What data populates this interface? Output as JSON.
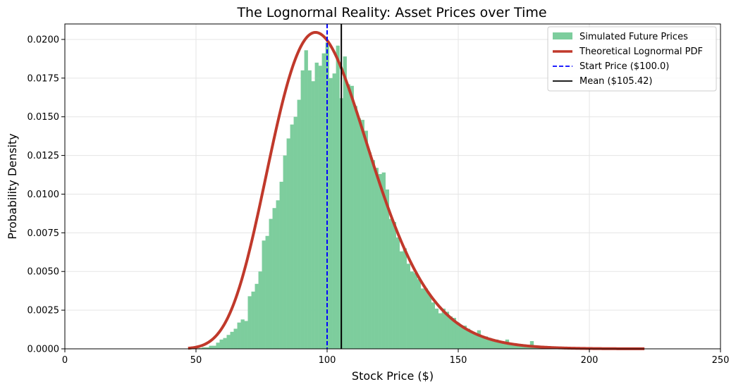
{
  "chart_data": {
    "type": "histogram",
    "title": "The Lognormal Reality: Asset Prices over Time",
    "xlabel": "Stock Price ($)",
    "ylabel": "Probability Density",
    "xlim": [
      0,
      250
    ],
    "ylim": [
      0,
      0.021
    ],
    "x_ticks": [
      0,
      50,
      100,
      150,
      200,
      250
    ],
    "y_ticks": [
      0.0,
      0.0025,
      0.005,
      0.0075,
      0.01,
      0.0125,
      0.015,
      0.0175,
      0.02
    ],
    "y_tick_labels": [
      "0.0000",
      "0.0025",
      "0.0050",
      "0.0075",
      "0.0100",
      "0.0125",
      "0.0150",
      "0.0175",
      "0.0200"
    ],
    "grid": true,
    "legend_position": "top-right",
    "colors": {
      "histogram": "#7dcd9d",
      "pdf_curve": "#c0392b",
      "start_line": "#0000ff",
      "mean_line": "#000000"
    },
    "histogram": {
      "name": "Simulated Future Prices",
      "bin_start": 46.9,
      "bin_width": 1.345,
      "values": [
        5e-05,
        0.0,
        0.0,
        5e-05,
        0.0001,
        0.0001,
        0.0002,
        0.0002,
        0.0004,
        0.0006,
        0.0007,
        0.0009,
        0.0011,
        0.0013,
        0.0017,
        0.0019,
        0.0018,
        0.0034,
        0.0037,
        0.0042,
        0.005,
        0.007,
        0.0073,
        0.0084,
        0.0091,
        0.0096,
        0.0108,
        0.0125,
        0.0136,
        0.0145,
        0.015,
        0.0161,
        0.018,
        0.0193,
        0.018,
        0.0173,
        0.0185,
        0.0183,
        0.0191,
        0.0198,
        0.0175,
        0.0178,
        0.0196,
        0.0162,
        0.0189,
        0.0171,
        0.017,
        0.0157,
        0.0149,
        0.0148,
        0.0141,
        0.0127,
        0.0122,
        0.0117,
        0.0113,
        0.0114,
        0.0103,
        0.0084,
        0.0082,
        0.0072,
        0.0063,
        0.0065,
        0.0055,
        0.005,
        0.0049,
        0.0045,
        0.0039,
        0.0039,
        0.0035,
        0.003,
        0.0026,
        0.0023,
        0.0026,
        0.0024,
        0.0021,
        0.002,
        0.0017,
        0.0015,
        0.0015,
        0.0013,
        0.0011,
        0.001,
        0.0012,
        0.0008,
        0.0008,
        0.0007,
        0.0006,
        0.0006,
        0.0005,
        0.0004,
        0.0006,
        0.0003,
        0.0003,
        0.0003,
        0.0002,
        0.0002,
        0.0002,
        0.0005,
        0.0001,
        0.0001
      ]
    },
    "pdf": {
      "name": "Theoretical Lognormal PDF",
      "mu": 4.6,
      "sigma": 0.2,
      "x_range": [
        47,
        221
      ]
    },
    "vlines": [
      {
        "name": "Start Price ($100.0)",
        "x": 100.0,
        "style": "dashed"
      },
      {
        "name": "Mean ($105.42)",
        "x": 105.42,
        "style": "solid"
      }
    ]
  }
}
